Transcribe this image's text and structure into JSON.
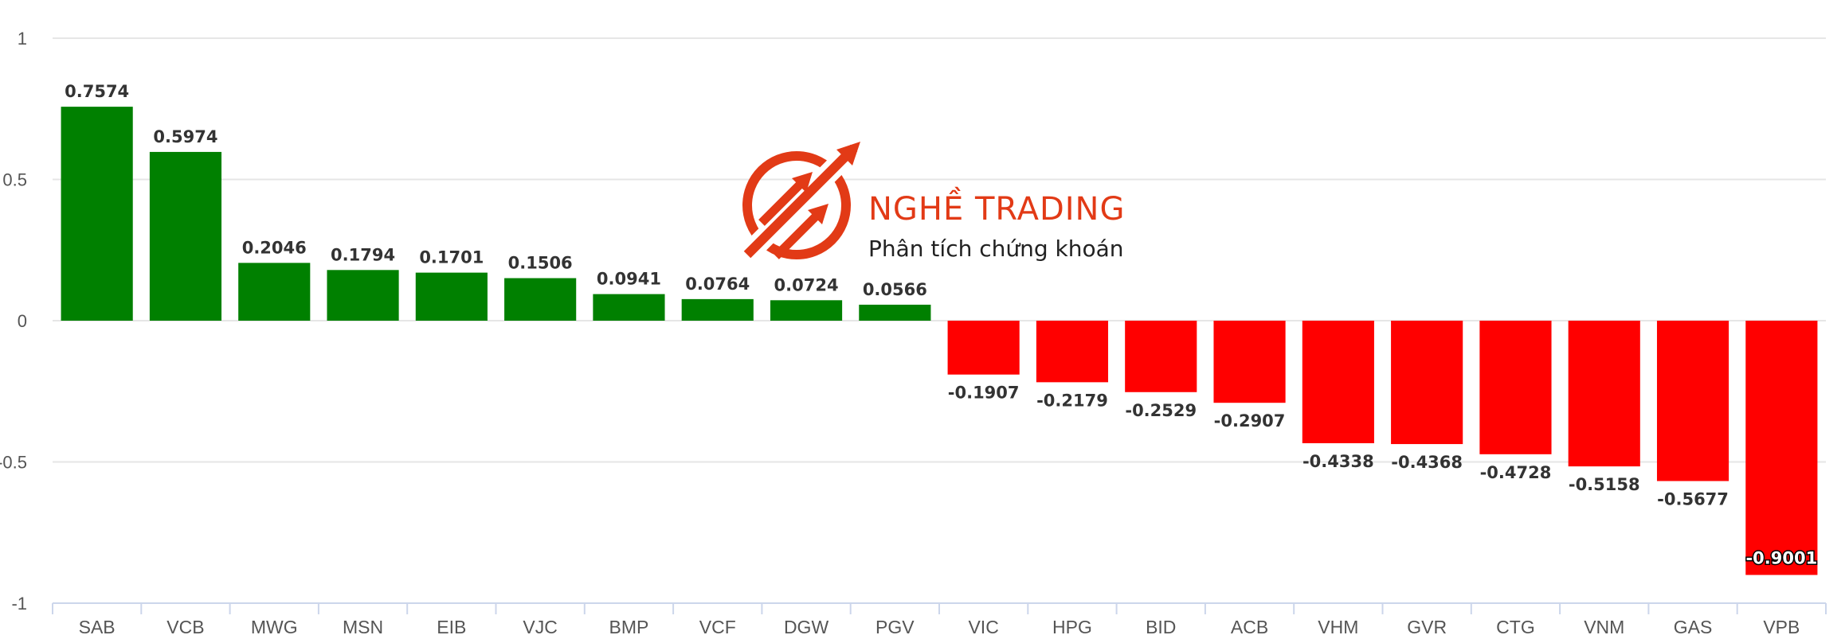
{
  "chart_data": {
    "type": "bar",
    "categories": [
      "SAB",
      "VCB",
      "MWG",
      "MSN",
      "EIB",
      "VJC",
      "BMP",
      "VCF",
      "DGW",
      "PGV",
      "VIC",
      "HPG",
      "BID",
      "ACB",
      "VHM",
      "GVR",
      "CTG",
      "VNM",
      "GAS",
      "VPB"
    ],
    "values": [
      0.7574,
      0.5974,
      0.2046,
      0.1794,
      0.1701,
      0.1506,
      0.0941,
      0.0764,
      0.0724,
      0.0566,
      -0.1907,
      -0.2179,
      -0.2529,
      -0.2907,
      -0.4338,
      -0.4368,
      -0.4728,
      -0.5158,
      -0.5677,
      -0.9001
    ],
    "data_labels": [
      "0.7574",
      "0.5974",
      "0.2046",
      "0.1794",
      "0.1701",
      "0.1506",
      "0.0941",
      "0.0764",
      "0.0724",
      "0.0566",
      "-0.1907",
      "-0.2179",
      "-0.2529",
      "-0.2907",
      "-0.4338",
      "-0.4368",
      "-0.4728",
      "-0.5158",
      "-0.5677",
      "-0.9001"
    ],
    "ylim": [
      -1,
      1
    ],
    "yticks": [
      1,
      0.5,
      0,
      -0.5,
      -1
    ],
    "ytick_labels": [
      "1",
      "0.5",
      "0",
      "-0.5",
      "-1"
    ],
    "grid": true,
    "legend": "none",
    "colors": {
      "positive": "#008000",
      "negative": "#ff0000",
      "grid": "#e6e6e6",
      "axis": "#ccd6eb"
    }
  },
  "watermark": {
    "title": "NGHỀ TRADING",
    "subtitle": "Phân tích chứng khoán",
    "color": "#e23a16",
    "icon": "chart-arrow-logo-icon"
  }
}
